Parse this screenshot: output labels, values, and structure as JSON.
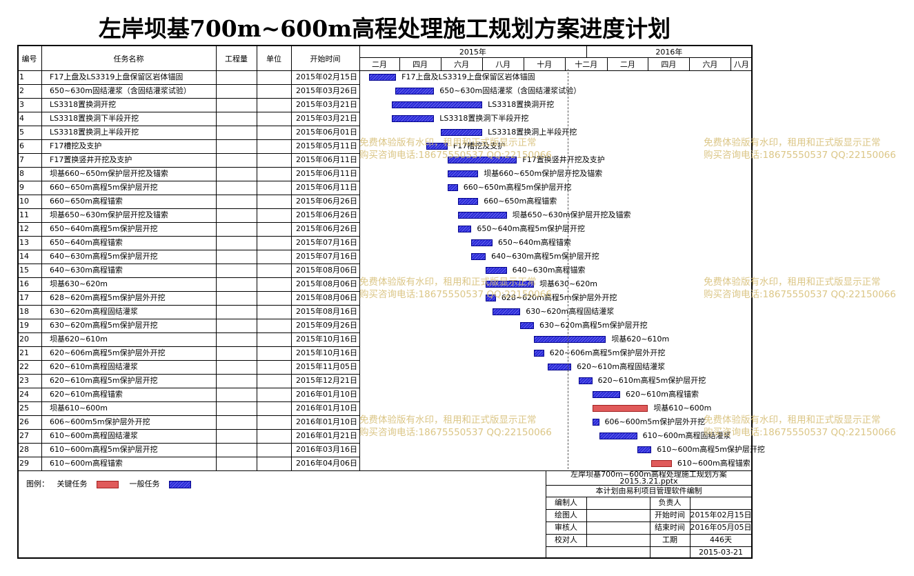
{
  "title": "左岸坝基700m~600m高程处理施工规划方案进度计划",
  "columns": {
    "no": "编号",
    "name": "任务名称",
    "qty": "工程量",
    "unit": "单位",
    "start": "开始时间"
  },
  "years": [
    {
      "label": "2015年"
    },
    {
      "label": "2016年"
    }
  ],
  "months": [
    "二月",
    "四月",
    "六月",
    "八月",
    "十月",
    "十二月",
    "二月",
    "四月",
    "六月",
    "八月"
  ],
  "chart_data": {
    "type": "gantt",
    "x_unit": "date",
    "xlim": [
      "2015-02-01",
      "2016-09-01"
    ],
    "tasks": [
      {
        "no": "1",
        "name": "F17上盘及LS3319上盘保留区岩体锚固",
        "start": "2015年02月15日",
        "s": "2015-02-15",
        "e": "2015-03-27",
        "critical": false
      },
      {
        "no": "2",
        "name": "650~630m固结灌浆（含固结灌浆试验）",
        "start": "2015年03月26日",
        "s": "2015-03-26",
        "e": "2015-05-22",
        "critical": false
      },
      {
        "no": "3",
        "name": "LS3318置换洞开挖",
        "start": "2015年03月21日",
        "s": "2015-03-21",
        "e": "2015-08-01",
        "critical": false
      },
      {
        "no": "4",
        "name": "LS3318置换洞下半段开挖",
        "start": "2015年03月21日",
        "s": "2015-03-21",
        "e": "2015-05-22",
        "critical": false
      },
      {
        "no": "5",
        "name": "LS3318置换洞上半段开挖",
        "start": "2015年06月01日",
        "s": "2015-06-01",
        "e": "2015-08-01",
        "critical": false
      },
      {
        "no": "6",
        "name": "F17槽挖及支护",
        "start": "2015年05月11日",
        "s": "2015-05-11",
        "e": "2015-06-11",
        "critical": false
      },
      {
        "no": "7",
        "name": "F17置换竖井开挖及支护",
        "start": "2015年06月11日",
        "s": "2015-06-11",
        "e": "2015-09-21",
        "critical": false
      },
      {
        "no": "8",
        "name": "坝基660~650m保护层开挖及锚索",
        "start": "2015年06月11日",
        "s": "2015-06-11",
        "e": "2015-07-26",
        "critical": false
      },
      {
        "no": "9",
        "name": "660~650m高程5m保护层开挖",
        "start": "2015年06月11日",
        "s": "2015-06-11",
        "e": "2015-06-26",
        "critical": false
      },
      {
        "no": "10",
        "name": "660~650m高程锚索",
        "start": "2015年06月26日",
        "s": "2015-06-26",
        "e": "2015-07-26",
        "critical": false
      },
      {
        "no": "11",
        "name": "坝基650~630m保护层开挖及锚索",
        "start": "2015年06月26日",
        "s": "2015-06-26",
        "e": "2015-09-06",
        "critical": false
      },
      {
        "no": "12",
        "name": "650~640m高程5m保护层开挖",
        "start": "2015年06月26日",
        "s": "2015-06-26",
        "e": "2015-07-16",
        "critical": false
      },
      {
        "no": "13",
        "name": "650~640m高程锚索",
        "start": "2015年07月16日",
        "s": "2015-07-16",
        "e": "2015-08-16",
        "critical": false
      },
      {
        "no": "14",
        "name": "640~630m高程5m保护层开挖",
        "start": "2015年07月16日",
        "s": "2015-07-16",
        "e": "2015-08-06",
        "critical": false
      },
      {
        "no": "15",
        "name": "640~630m高程锚索",
        "start": "2015年08月06日",
        "s": "2015-08-06",
        "e": "2015-09-06",
        "critical": false
      },
      {
        "no": "16",
        "name": "坝基630~620m",
        "start": "2015年08月06日",
        "s": "2015-08-06",
        "e": "2015-10-16",
        "critical": false
      },
      {
        "no": "17",
        "name": "628~620m高程5m保护层外开挖",
        "start": "2015年08月06日",
        "s": "2015-08-06",
        "e": "2015-08-21",
        "critical": false
      },
      {
        "no": "18",
        "name": "630~620m高程固结灌浆",
        "start": "2015年08月16日",
        "s": "2015-08-16",
        "e": "2015-09-26",
        "critical": false
      },
      {
        "no": "19",
        "name": "630~620m高程5m保护层开挖",
        "start": "2015年09月26日",
        "s": "2015-09-26",
        "e": "2015-10-16",
        "critical": false
      },
      {
        "no": "20",
        "name": "坝基620~610m",
        "start": "2015年10月16日",
        "s": "2015-10-16",
        "e": "2016-01-30",
        "critical": false
      },
      {
        "no": "21",
        "name": "620~606m高程5m保护层外开挖",
        "start": "2015年10月16日",
        "s": "2015-10-16",
        "e": "2015-10-31",
        "critical": false
      },
      {
        "no": "22",
        "name": "620~610m高程固结灌浆",
        "start": "2015年11月05日",
        "s": "2015-11-05",
        "e": "2015-12-10",
        "critical": false
      },
      {
        "no": "23",
        "name": "620~610m高程5m保护层开挖",
        "start": "2015年12月21日",
        "s": "2015-12-21",
        "e": "2016-01-10",
        "critical": false
      },
      {
        "no": "24",
        "name": "620~610m高程锚索",
        "start": "2016年01月10日",
        "s": "2016-01-10",
        "e": "2016-02-20",
        "critical": false
      },
      {
        "no": "25",
        "name": "坝基610~600m",
        "start": "2016年01月10日",
        "s": "2016-01-10",
        "e": "2016-04-01",
        "critical": true
      },
      {
        "no": "26",
        "name": "606~600m5m保护层外开挖",
        "start": "2016年01月10日",
        "s": "2016-01-10",
        "e": "2016-01-20",
        "critical": false
      },
      {
        "no": "27",
        "name": "610~600m高程固结灌浆",
        "start": "2016年01月21日",
        "s": "2016-01-21",
        "e": "2016-03-16",
        "critical": false
      },
      {
        "no": "28",
        "name": "610~600m高程5m保护层开挖",
        "start": "2016年03月16日",
        "s": "2016-03-16",
        "e": "2016-04-06",
        "critical": false
      },
      {
        "no": "29",
        "name": "610~600m高程锚索",
        "start": "2016年04月06日",
        "s": "2016-04-06",
        "e": "2016-05-06",
        "critical": true
      }
    ]
  },
  "legend": {
    "label": "图例：",
    "critical": "关键任务",
    "normal": "一般任务",
    "critical_color": "#e05a5a",
    "normal_color": "#3a3ae0"
  },
  "info": {
    "file": "左岸坝基700m~600m高程处理施工规划方案",
    "file2": "2015.3.21.pptx",
    "software": "本计划由易利项目管理软件编制",
    "editor_label": "编制人",
    "owner_label": "负责人",
    "drawer_label": "绘图人",
    "start_label": "开始时间",
    "start_value": "2015年02月15日",
    "reviewer_label": "审核人",
    "end_label": "结束时间",
    "end_value": "2016年05月05日",
    "checker_label": "校对人",
    "duration_label": "工期",
    "duration_value": "446天",
    "date": "2015-03-21"
  },
  "watermark": {
    "line1": "免费体验版有水印，租用和正式版显示正常",
    "line2": "购买咨询电话:18675550537 QQ:22150066"
  }
}
